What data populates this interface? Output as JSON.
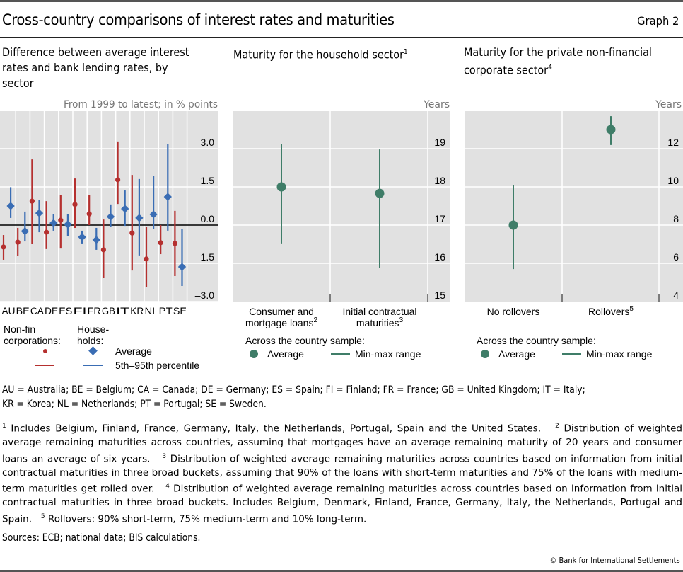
{
  "header": {
    "title": "Cross-country comparisons of interest rates and maturities",
    "graph_number": "Graph 2"
  },
  "panels": [
    {
      "title_lines": [
        "Difference between average interest",
        "rates and bank lending rates, by",
        "sector"
      ],
      "unit_label": "From 1999 to latest; in % points"
    },
    {
      "title": "Maturity for the household sector",
      "title_sup": "1",
      "unit_label": "Years"
    },
    {
      "title_lines": [
        "Maturity for the private non-financial",
        "corporate sector"
      ],
      "title_sup": "4",
      "unit_label": "Years"
    }
  ],
  "legend_left": {
    "group1_line1": "Non-fin",
    "group1_line2": "corporations:",
    "group2_line1": "House-",
    "group2_line2": "holds:",
    "average": "Average",
    "range": "5th–95th percentile"
  },
  "legend_mid": {
    "heading": "Across the country sample:",
    "average": "Average",
    "range": "Min-max range"
  },
  "legend_right": {
    "heading": "Across the country sample:",
    "average": "Average",
    "range": "Min-max range"
  },
  "colors": {
    "nonfin": "#b5302f",
    "households": "#3a6db4",
    "maturity": "#3f7d68",
    "plot_bg": "#e1e1e1",
    "grid": "#ffffff"
  },
  "chart_data": [
    {
      "type": "scatter",
      "title": "Difference between average interest rates and bank lending rates, by sector",
      "subtitle": "From 1999 to latest; in % points",
      "categories": [
        "AU",
        "BE",
        "CA",
        "DE",
        "ES",
        "FI",
        "FR",
        "GB",
        "IT",
        "KR",
        "NL",
        "PT",
        "SE"
      ],
      "ylim": [
        -3.0,
        4.0
      ],
      "yticks": [
        3.0,
        1.5,
        0.0,
        -1.5,
        -3.0
      ],
      "ytick_labels": [
        "3.0",
        "1.5",
        "0.0",
        "–1.5",
        "–3.0"
      ],
      "grid": true,
      "series": [
        {
          "name": "Non-fin corporations",
          "marker": "circle",
          "average": [
            -0.86,
            -0.67,
            0.94,
            -0.28,
            0.19,
            0.81,
            0.44,
            -0.97,
            1.78,
            -0.31,
            -1.33,
            -0.69,
            -0.72
          ],
          "p5": [
            -1.36,
            -1.22,
            -0.75,
            -0.94,
            -0.92,
            -0.11,
            0.0,
            -2.06,
            0.83,
            -1.78,
            -2.44,
            -1.14,
            -2.0
          ],
          "p95": [
            -0.39,
            -0.11,
            2.58,
            0.94,
            1.17,
            1.83,
            1.17,
            0.22,
            3.28,
            1.97,
            -0.08,
            0.0,
            0.56
          ]
        },
        {
          "name": "Households",
          "marker": "diamond",
          "average": [
            0.75,
            -0.24,
            0.47,
            0.08,
            0.03,
            -0.47,
            -0.58,
            0.33,
            0.64,
            0.28,
            0.42,
            1.11,
            -1.64
          ],
          "p5": [
            0.28,
            -0.64,
            -0.28,
            -0.22,
            -0.42,
            -0.72,
            -0.97,
            -0.08,
            -0.03,
            -1.19,
            -0.14,
            -0.22,
            -2.39
          ],
          "p95": [
            1.49,
            0.53,
            1.0,
            0.42,
            0.44,
            -0.22,
            -0.11,
            0.81,
            1.36,
            1.81,
            1.92,
            3.19,
            -0.14
          ]
        }
      ],
      "legend": "bottom"
    },
    {
      "type": "scatter",
      "title": "Maturity for the household sector",
      "ylabel": "Years",
      "categories": [
        "Consumer and mortgage loans",
        "Initial contractual maturities"
      ],
      "category_sups": [
        "2",
        "3"
      ],
      "category_lines": [
        [
          "Consumer and",
          "mortgage loans"
        ],
        [
          "Initial contractual",
          "maturities"
        ]
      ],
      "ylim": [
        15,
        19
      ],
      "yticks": [
        19,
        18,
        17,
        16,
        15
      ],
      "grid": true,
      "average": [
        18.0,
        17.83
      ],
      "min": [
        16.52,
        15.87
      ],
      "max": [
        19.11,
        18.98
      ],
      "legend": "bottom"
    },
    {
      "type": "scatter",
      "title": "Maturity for the private non-financial corporate sector",
      "ylabel": "Years",
      "categories": [
        "No rollovers",
        "Rollovers"
      ],
      "category_sups": [
        "",
        "5"
      ],
      "ylim": [
        4,
        12
      ],
      "yticks": [
        12,
        10,
        8,
        6,
        4
      ],
      "grid": true,
      "average": [
        8.0,
        13.0
      ],
      "min": [
        5.7,
        12.19
      ],
      "max": [
        10.11,
        13.7
      ],
      "legend": "bottom"
    }
  ],
  "notes": {
    "abbreviations_line1": "AU = Australia; BE = Belgium; CA = Canada; DE = Germany; ES = Spain; FI = Finland; FR = France; GB = United Kingdom; IT = Italy;",
    "abbreviations_line2": "KR = Korea; NL = Netherlands; PT = Portugal; SE = Sweden.",
    "footnotes": [
      {
        "n": "1",
        "text": "Includes Belgium, Finland, France, Germany, Italy, the Netherlands, Portugal, Spain and the United States."
      },
      {
        "n": "2",
        "text": "Distribution of weighted average remaining maturities across countries, assuming that mortgages have an average remaining maturity of 20 years and consumer loans an average of six years."
      },
      {
        "n": "3",
        "text": "Distribution of weighted average remaining maturities across countries based on information from initial contractual maturities in three broad buckets, assuming that 90% of the loans with short-term maturities and 75% of the loans with medium-term maturities get rolled over."
      },
      {
        "n": "4",
        "text": "Distribution of weighted average remaining maturities across countries based on information from initial contractual maturities in three broad buckets. Includes Belgium, Denmark, Finland, France, Germany, Italy, the Netherlands, Portugal and Spain."
      },
      {
        "n": "5",
        "text": "Rollovers: 90% short-term, 75% medium-term and 10% long-term."
      }
    ],
    "sources": "Sources: ECB; national data; BIS calculations.",
    "copyright": "© Bank for International Settlements"
  }
}
